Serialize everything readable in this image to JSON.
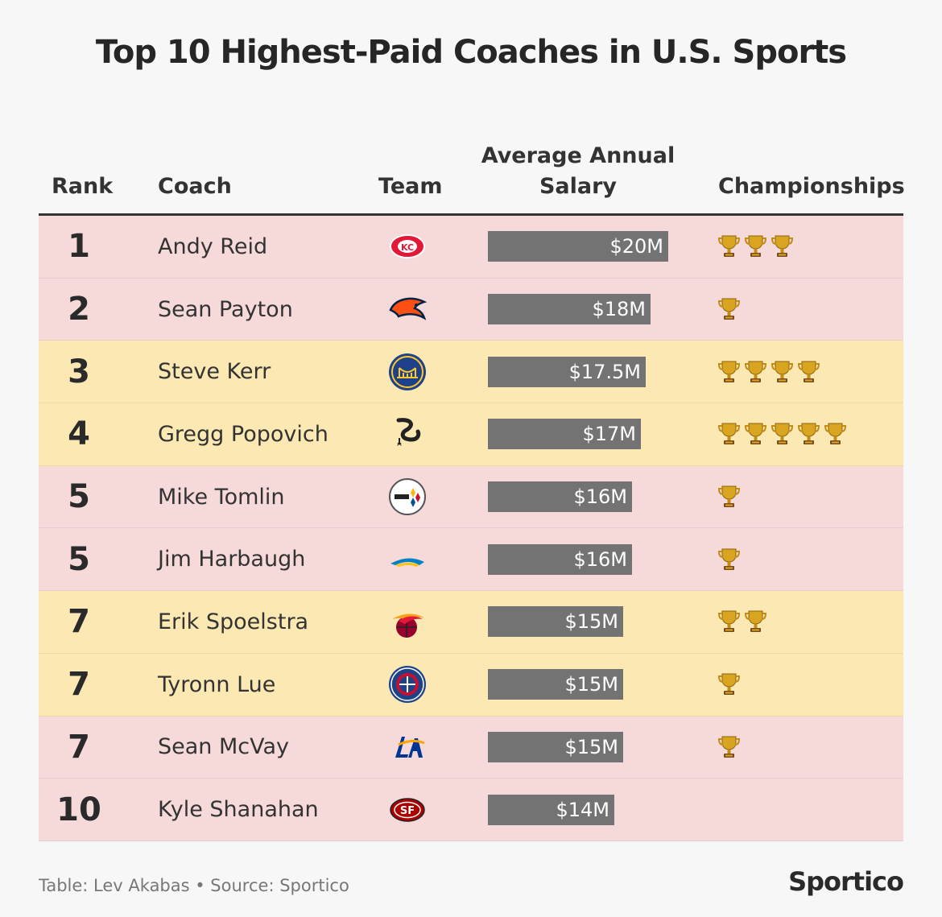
{
  "title": "Top 10 Highest-Paid Coaches in U.S. Sports",
  "headers": {
    "rank": "Rank",
    "coach": "Coach",
    "team": "Team",
    "salary_line1": "Average Annual",
    "salary_line2": "Salary",
    "championships": "Championships"
  },
  "footer": "Table: Lev Akabas • Source: Sportico",
  "brand": "Sportico",
  "colors": {
    "nfl_row": "#f6d9d9",
    "nba_row": "#fbe8b2",
    "bar": "#737373",
    "trophy": "#d9a520"
  },
  "chart_data": {
    "type": "table",
    "title": "Top 10 Highest-Paid Coaches in U.S. Sports",
    "columns": [
      "Rank",
      "Coach",
      "Team",
      "Average Annual Salary",
      "Championships"
    ],
    "salary_max": 20,
    "rows": [
      {
        "rank": "1",
        "coach": "Andy Reid",
        "team_icon": "kansas-city-chiefs-logo-icon",
        "league": "nfl",
        "salary": 20,
        "salary_label": "$20M",
        "championships": 3
      },
      {
        "rank": "2",
        "coach": "Sean Payton",
        "team_icon": "denver-broncos-logo-icon",
        "league": "nfl",
        "salary": 18,
        "salary_label": "$18M",
        "championships": 1
      },
      {
        "rank": "3",
        "coach": "Steve Kerr",
        "team_icon": "golden-state-warriors-logo-icon",
        "league": "nba",
        "salary": 17.5,
        "salary_label": "$17.5M",
        "championships": 4
      },
      {
        "rank": "4",
        "coach": "Gregg Popovich",
        "team_icon": "san-antonio-spurs-logo-icon",
        "league": "nba",
        "salary": 17,
        "salary_label": "$17M",
        "championships": 5
      },
      {
        "rank": "5",
        "coach": "Mike Tomlin",
        "team_icon": "pittsburgh-steelers-logo-icon",
        "league": "nfl",
        "salary": 16,
        "salary_label": "$16M",
        "championships": 1
      },
      {
        "rank": "5",
        "coach": "Jim Harbaugh",
        "team_icon": "los-angeles-chargers-logo-icon",
        "league": "nfl",
        "salary": 16,
        "salary_label": "$16M",
        "championships": 1
      },
      {
        "rank": "7",
        "coach": "Erik Spoelstra",
        "team_icon": "miami-heat-logo-icon",
        "league": "nba",
        "salary": 15,
        "salary_label": "$15M",
        "championships": 2
      },
      {
        "rank": "7",
        "coach": "Tyronn Lue",
        "team_icon": "la-clippers-logo-icon",
        "league": "nba",
        "salary": 15,
        "salary_label": "$15M",
        "championships": 1
      },
      {
        "rank": "7",
        "coach": "Sean McVay",
        "team_icon": "los-angeles-rams-logo-icon",
        "league": "nfl",
        "salary": 15,
        "salary_label": "$15M",
        "championships": 1
      },
      {
        "rank": "10",
        "coach": "Kyle Shanahan",
        "team_icon": "san-francisco-49ers-logo-icon",
        "league": "nfl",
        "salary": 14,
        "salary_label": "$14M",
        "championships": 0
      }
    ]
  }
}
